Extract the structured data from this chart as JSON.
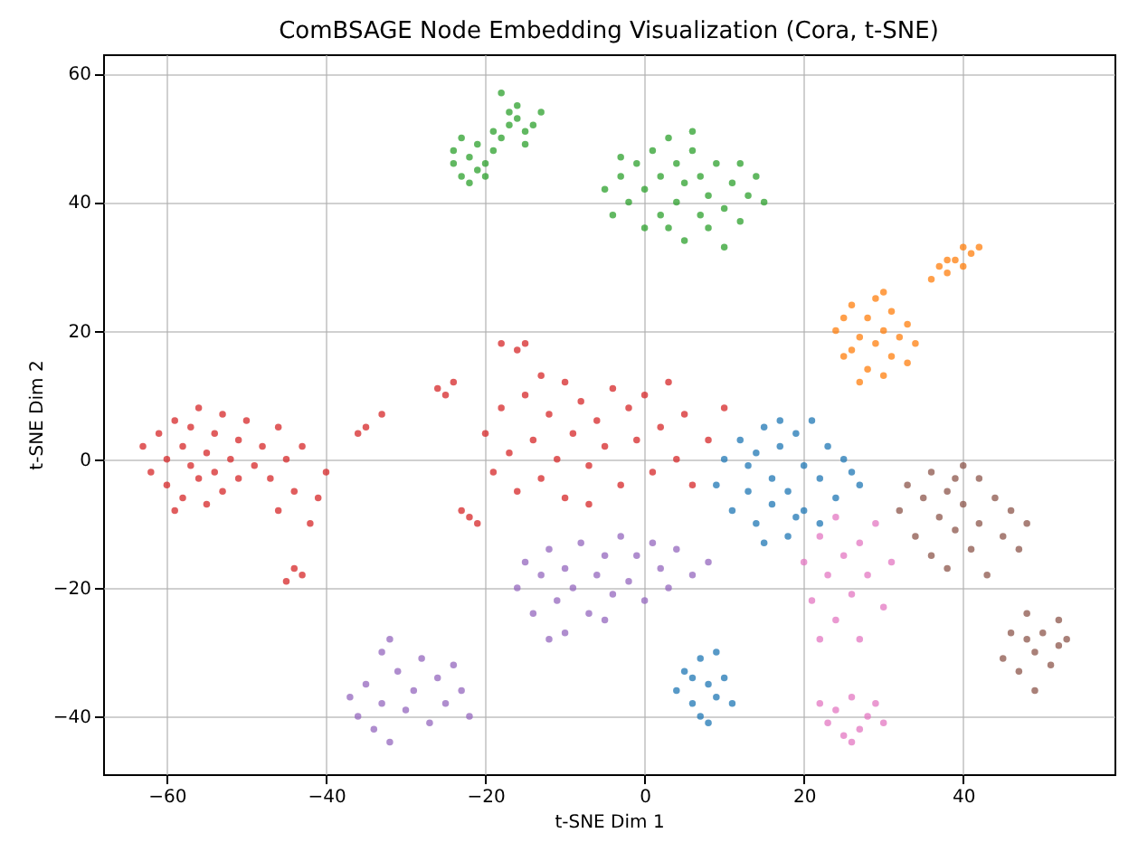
{
  "chart_data": {
    "type": "scatter",
    "title": "ComBSAGE Node Embedding Visualization (Cora, t-SNE)",
    "xlabel": "t-SNE Dim 1",
    "ylabel": "t-SNE Dim 2",
    "xlim": [
      -68,
      59
    ],
    "ylim": [
      -49,
      63
    ],
    "xticks": [
      -60,
      -40,
      -20,
      0,
      20,
      40
    ],
    "yticks": [
      -40,
      -20,
      0,
      20,
      40,
      60
    ],
    "grid": true,
    "marker": "circle",
    "series": [
      {
        "color": "#2ca02c",
        "x": [
          -24,
          -23,
          -22,
          -21,
          -20,
          -22,
          -24,
          -21,
          -19,
          -18,
          -17,
          -16,
          -15,
          -14,
          -16,
          -18,
          -17,
          -13,
          -20,
          -19,
          -23,
          -15,
          -5,
          -4,
          -3,
          -2,
          -1,
          0,
          0,
          1,
          2,
          2,
          3,
          4,
          4,
          5,
          5,
          6,
          7,
          7,
          8,
          8,
          9,
          10,
          11,
          12,
          13,
          14,
          15,
          10,
          3,
          -3,
          6,
          12
        ],
        "values": [
          46,
          44,
          47,
          45,
          46,
          43,
          48,
          49,
          48,
          50,
          52,
          53,
          51,
          52,
          55,
          57,
          54,
          54,
          44,
          51,
          50,
          49,
          42,
          38,
          44,
          40,
          46,
          36,
          42,
          48,
          38,
          44,
          50,
          40,
          46,
          34,
          43,
          48,
          38,
          44,
          36,
          41,
          46,
          39,
          43,
          37,
          41,
          44,
          40,
          33,
          36,
          47,
          51,
          46
        ]
      },
      {
        "color": "#ff7f0e",
        "x": [
          24,
          25,
          26,
          26,
          27,
          28,
          28,
          29,
          29,
          30,
          30,
          31,
          31,
          32,
          33,
          33,
          34,
          27,
          25,
          30,
          36,
          37,
          38,
          39,
          40,
          41,
          42,
          40,
          38
        ],
        "values": [
          20,
          22,
          17,
          24,
          19,
          14,
          22,
          18,
          25,
          20,
          13,
          16,
          23,
          19,
          15,
          21,
          18,
          12,
          16,
          26,
          28,
          30,
          29,
          31,
          33,
          32,
          33,
          30,
          31
        ]
      },
      {
        "color": "#d62728",
        "x": [
          -63,
          -62,
          -61,
          -60,
          -60,
          -59,
          -58,
          -58,
          -57,
          -57,
          -56,
          -56,
          -55,
          -55,
          -54,
          -54,
          -53,
          -53,
          -52,
          -51,
          -51,
          -50,
          -49,
          -48,
          -47,
          -46,
          -45,
          -44,
          -43,
          -42,
          -41,
          -40,
          -46,
          -59,
          -44,
          -45,
          -43,
          -35,
          -33,
          -36,
          -26,
          -25,
          -24,
          -18,
          -16,
          -15,
          -22,
          -21,
          -23,
          -20,
          -19,
          -18,
          -17,
          -16,
          -15,
          -14,
          -13,
          -12,
          -11,
          -10,
          -10,
          -9,
          -8,
          -7,
          -6,
          -5,
          -4,
          -3,
          -2,
          -1,
          0,
          1,
          2,
          3,
          4,
          5,
          6,
          8,
          10,
          -13,
          -7
        ],
        "values": [
          2,
          -2,
          4,
          0,
          -4,
          6,
          2,
          -6,
          -1,
          5,
          -3,
          8,
          1,
          -7,
          4,
          -2,
          -5,
          7,
          0,
          3,
          -3,
          6,
          -1,
          2,
          -3,
          -8,
          0,
          -5,
          2,
          -10,
          -6,
          -2,
          5,
          -8,
          -17,
          -19,
          -18,
          5,
          7,
          4,
          11,
          10,
          12,
          18,
          17,
          18,
          -9,
          -10,
          -8,
          4,
          -2,
          8,
          1,
          -5,
          10,
          3,
          -3,
          7,
          0,
          12,
          -6,
          4,
          9,
          -1,
          6,
          2,
          11,
          -4,
          8,
          3,
          10,
          -2,
          5,
          12,
          0,
          7,
          -4,
          3,
          8,
          13,
          -7
        ]
      },
      {
        "color": "#1f77b4",
        "x": [
          9,
          10,
          11,
          12,
          13,
          14,
          14,
          15,
          16,
          16,
          17,
          18,
          18,
          19,
          20,
          20,
          21,
          22,
          23,
          24,
          25,
          26,
          27,
          13,
          19,
          22,
          15,
          17,
          4,
          5,
          6,
          7,
          7,
          8,
          9,
          9,
          10,
          11,
          6,
          8
        ],
        "values": [
          -4,
          0,
          -8,
          3,
          -5,
          -10,
          1,
          5,
          -3,
          -7,
          2,
          -12,
          -5,
          4,
          -1,
          -8,
          6,
          -3,
          2,
          -6,
          0,
          -2,
          -4,
          -1,
          -9,
          -10,
          -13,
          6,
          -36,
          -33,
          -38,
          -31,
          -40,
          -35,
          -37,
          -30,
          -34,
          -38,
          -34,
          -41
        ]
      },
      {
        "color": "#9467bd",
        "x": [
          -16,
          -15,
          -14,
          -13,
          -12,
          -11,
          -10,
          -10,
          -9,
          -8,
          -7,
          -6,
          -5,
          -4,
          -3,
          -2,
          -1,
          0,
          1,
          2,
          3,
          4,
          6,
          8,
          -12,
          -5,
          -37,
          -36,
          -35,
          -34,
          -33,
          -32,
          -32,
          -31,
          -30,
          -29,
          -28,
          -27,
          -26,
          -25,
          -24,
          -23,
          -22,
          -33
        ],
        "values": [
          -20,
          -16,
          -24,
          -18,
          -14,
          -22,
          -27,
          -17,
          -20,
          -13,
          -24,
          -18,
          -15,
          -21,
          -12,
          -19,
          -15,
          -22,
          -13,
          -17,
          -20,
          -14,
          -18,
          -16,
          -28,
          -25,
          -37,
          -40,
          -35,
          -42,
          -38,
          -28,
          -44,
          -33,
          -39,
          -36,
          -31,
          -41,
          -34,
          -38,
          -32,
          -36,
          -40,
          -30
        ]
      },
      {
        "color": "#8c564b",
        "x": [
          32,
          33,
          34,
          35,
          36,
          36,
          37,
          38,
          38,
          39,
          40,
          40,
          41,
          42,
          42,
          43,
          44,
          45,
          46,
          47,
          48,
          39,
          45,
          46,
          47,
          48,
          49,
          49,
          50,
          51,
          52,
          52,
          53,
          48
        ],
        "values": [
          -8,
          -4,
          -12,
          -6,
          -2,
          -15,
          -9,
          -5,
          -17,
          -11,
          -1,
          -7,
          -14,
          -3,
          -10,
          -18,
          -6,
          -12,
          -8,
          -14,
          -10,
          -3,
          -31,
          -27,
          -33,
          -24,
          -30,
          -36,
          -27,
          -32,
          -25,
          -29,
          -28,
          -28
        ]
      },
      {
        "color": "#e377c2",
        "x": [
          20,
          21,
          22,
          23,
          24,
          24,
          25,
          26,
          27,
          27,
          28,
          29,
          30,
          31,
          22,
          22,
          23,
          24,
          25,
          26,
          27,
          28,
          29,
          30,
          26
        ],
        "values": [
          -16,
          -22,
          -12,
          -18,
          -25,
          -9,
          -15,
          -21,
          -13,
          -28,
          -18,
          -10,
          -23,
          -16,
          -28,
          -38,
          -41,
          -39,
          -43,
          -37,
          -42,
          -40,
          -38,
          -41,
          -44
        ]
      }
    ]
  }
}
